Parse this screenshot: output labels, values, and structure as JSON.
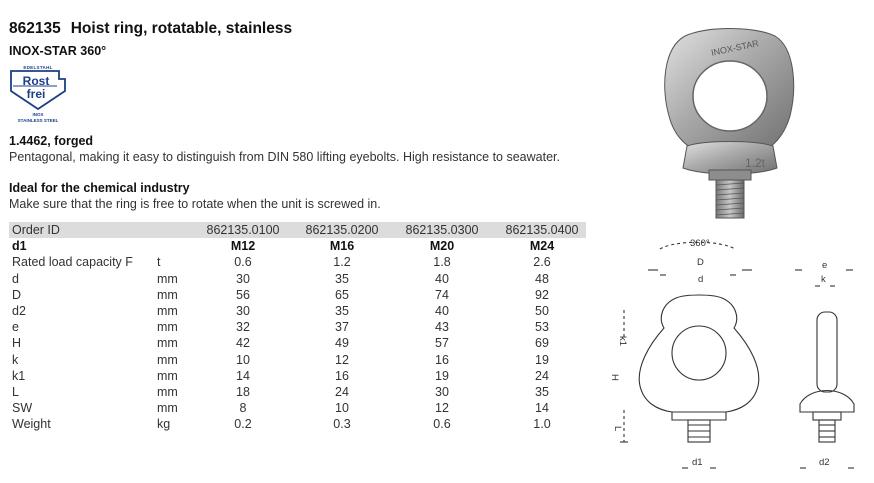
{
  "product": {
    "number": "862135",
    "name": "Hoist ring, rotatable, stainless",
    "series": "INOX-STAR 360°"
  },
  "badge": {
    "top": "EDELSTAHL",
    "line1": "Rost",
    "line2": "frei",
    "bottom1": "INOX",
    "bottom2": "STAINLESS STEEL"
  },
  "material": {
    "title": "1.4462, forged",
    "description": "Pentagonal, making it easy to distinguish from DIN 580 lifting eyebolts. High resistance to seawater."
  },
  "industry": {
    "title": "Ideal for the chemical industry",
    "description": "Make sure that the ring is free to rotate when the unit is screwed in."
  },
  "table": {
    "rows": [
      {
        "label": "Order ID",
        "unit": "",
        "values": [
          "862135.0100",
          "862135.0200",
          "862135.0300",
          "862135.0400"
        ]
      },
      {
        "label": "d1",
        "unit": "",
        "values": [
          "M12",
          "M16",
          "M20",
          "M24"
        ]
      },
      {
        "label": "Rated load capacity F",
        "unit": "t",
        "values": [
          "0.6",
          "1.2",
          "1.8",
          "2.6"
        ]
      },
      {
        "label": "d",
        "unit": "mm",
        "values": [
          "30",
          "35",
          "40",
          "48"
        ]
      },
      {
        "label": "D",
        "unit": "mm",
        "values": [
          "56",
          "65",
          "74",
          "92"
        ]
      },
      {
        "label": "d2",
        "unit": "mm",
        "values": [
          "30",
          "35",
          "40",
          "50"
        ]
      },
      {
        "label": "e",
        "unit": "mm",
        "values": [
          "32",
          "37",
          "43",
          "53"
        ]
      },
      {
        "label": "H",
        "unit": "mm",
        "values": [
          "42",
          "49",
          "57",
          "69"
        ]
      },
      {
        "label": "k",
        "unit": "mm",
        "values": [
          "10",
          "12",
          "16",
          "19"
        ]
      },
      {
        "label": "k1",
        "unit": "mm",
        "values": [
          "14",
          "16",
          "19",
          "24"
        ]
      },
      {
        "label": "L",
        "unit": "mm",
        "values": [
          "18",
          "24",
          "30",
          "35"
        ]
      },
      {
        "label": "SW",
        "unit": "mm",
        "values": [
          "8",
          "10",
          "12",
          "14"
        ]
      },
      {
        "label": "Weight",
        "unit": "kg",
        "values": [
          "0.2",
          "0.3",
          "0.6",
          "1.0"
        ]
      }
    ]
  },
  "photo": {
    "ring_text": "INOX-STAR",
    "marking": "1.2t"
  },
  "diagram": {
    "angle": "360°",
    "D": "D",
    "d": "d",
    "e": "e",
    "k": "k",
    "k1": "k1",
    "H": "H",
    "L": "L",
    "d1": "d1",
    "d2": "d2"
  },
  "colors": {
    "badge_blue": "#1c3f85",
    "row_shade": "#dcdcdc",
    "steel": "#a8a8a8"
  }
}
